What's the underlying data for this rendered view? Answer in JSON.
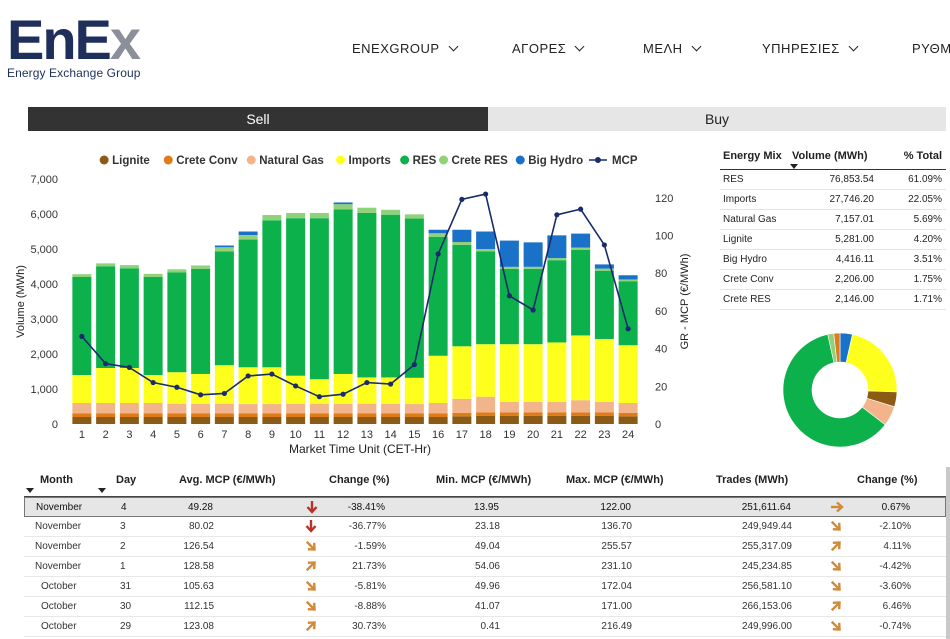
{
  "header": {
    "logo_main": "EnE",
    "logo_x": "x",
    "logo_sub": "Energy Exchange Group",
    "nav": [
      "ENEXGROUP",
      "ΑΓΟΡΕΣ",
      "ΜΕΛΗ",
      "ΥΠΗΡΕΣΙΕΣ",
      "ΡΥΘΜ"
    ]
  },
  "tabs": {
    "sell": "Sell",
    "buy": "Buy"
  },
  "chart_data": {
    "type": "bar",
    "subtype": "stacked-bar-with-line",
    "categories": [
      "1",
      "2",
      "3",
      "4",
      "5",
      "6",
      "7",
      "8",
      "9",
      "10",
      "11",
      "12",
      "13",
      "14",
      "15",
      "16",
      "17",
      "18",
      "19",
      "20",
      "21",
      "22",
      "23",
      "24"
    ],
    "xlabel": "Market Time Unit (CET-Hr)",
    "ylabel": "Volume (MWh)",
    "y2label": "GR - MCP (€/MWh)",
    "ylim": [
      0,
      7000
    ],
    "y2lim": [
      0,
      130
    ],
    "yticks": [
      "0",
      "1,000",
      "2,000",
      "3,000",
      "4,000",
      "5,000",
      "6,000",
      "7,000"
    ],
    "y2ticks": [
      "0",
      "20",
      "40",
      "60",
      "80",
      "100",
      "120"
    ],
    "legend_position": "top",
    "series": [
      {
        "name": "Lignite",
        "color": "#8b5a14",
        "values": [
          200,
          200,
          200,
          200,
          200,
          200,
          200,
          200,
          200,
          200,
          200,
          200,
          200,
          200,
          200,
          200,
          220,
          230,
          230,
          230,
          230,
          230,
          230,
          220
        ]
      },
      {
        "name": "Crete Conv",
        "color": "#e07b1a",
        "values": [
          100,
          100,
          100,
          100,
          100,
          100,
          100,
          100,
          100,
          100,
          100,
          100,
          100,
          100,
          100,
          100,
          100,
          100,
          100,
          100,
          100,
          100,
          100,
          100
        ]
      },
      {
        "name": "Natural Gas",
        "color": "#f2b48a",
        "values": [
          300,
          300,
          300,
          300,
          280,
          280,
          280,
          270,
          270,
          280,
          280,
          280,
          280,
          280,
          270,
          300,
          400,
          450,
          300,
          300,
          300,
          350,
          300,
          280
        ]
      },
      {
        "name": "Imports",
        "color": "#ffff1e",
        "values": [
          800,
          1000,
          1000,
          800,
          900,
          850,
          1100,
          1050,
          1050,
          800,
          700,
          850,
          750,
          750,
          750,
          1350,
          1500,
          1500,
          1650,
          1650,
          1700,
          1850,
          1800,
          1650
        ]
      },
      {
        "name": "RES",
        "color": "#0db14b",
        "values": [
          2800,
          2900,
          2850,
          2800,
          2850,
          3000,
          3250,
          3650,
          4200,
          4500,
          4600,
          4700,
          4700,
          4650,
          4550,
          3400,
          2900,
          2650,
          2150,
          2150,
          2350,
          2450,
          1950,
          1830
        ]
      },
      {
        "name": "Crete RES",
        "color": "#8fd27a",
        "values": [
          80,
          90,
          90,
          90,
          90,
          100,
          120,
          130,
          150,
          150,
          150,
          150,
          150,
          140,
          120,
          100,
          80,
          70,
          60,
          60,
          60,
          60,
          60,
          50
        ]
      },
      {
        "name": "Big Hydro",
        "color": "#1a72c8",
        "values": [
          0,
          0,
          0,
          0,
          0,
          0,
          50,
          100,
          0,
          0,
          0,
          50,
          0,
          0,
          0,
          100,
          350,
          500,
          750,
          700,
          650,
          400,
          120,
          120
        ]
      }
    ],
    "line_series": {
      "name": "MCP",
      "color": "#1a2a6c",
      "axis": "right",
      "values": [
        46.5,
        32,
        30,
        22,
        19.5,
        15.5,
        16.2,
        25.5,
        26.5,
        20.2,
        14.5,
        15.8,
        22,
        21.2,
        31.5,
        90.2,
        119.2,
        122,
        68,
        60.5,
        111,
        114,
        95,
        50.5
      ]
    }
  },
  "energy_mix": {
    "headers": [
      "Energy Mix",
      "Volume (MWh)",
      "% Total"
    ],
    "rows": [
      {
        "name": "RES",
        "volume": "76,853.54",
        "pct": "61.09%"
      },
      {
        "name": "Imports",
        "volume": "27,746.20",
        "pct": "22.05%"
      },
      {
        "name": "Natural Gas",
        "volume": "7,157.01",
        "pct": "5.69%"
      },
      {
        "name": "Lignite",
        "volume": "5,281.00",
        "pct": "4.20%"
      },
      {
        "name": "Big Hydro",
        "volume": "4,416.11",
        "pct": "3.51%"
      },
      {
        "name": "Crete Conv",
        "volume": "2,206.00",
        "pct": "1.75%"
      },
      {
        "name": "Crete RES",
        "volume": "2,146.00",
        "pct": "1.71%"
      }
    ],
    "donut": [
      {
        "name": "RES",
        "value": 61.09,
        "color": "#0db14b"
      },
      {
        "name": "Imports",
        "value": 22.05,
        "color": "#ffff1e"
      },
      {
        "name": "Lignite",
        "value": 4.2,
        "color": "#8b5a14"
      },
      {
        "name": "Natural Gas",
        "value": 5.69,
        "color": "#f2b48a"
      },
      {
        "name": "Crete RES",
        "value": 1.71,
        "color": "#8fd27a"
      },
      {
        "name": "Crete Conv",
        "value": 1.75,
        "color": "#e07b1a"
      },
      {
        "name": "Big Hydro",
        "value": 3.51,
        "color": "#1a72c8"
      }
    ]
  },
  "history": {
    "headers": {
      "month": "Month",
      "day": "Day",
      "avg": "Avg. MCP (€/MWh)",
      "change": "Change (%)",
      "min": "Min. MCP (€/MWh)",
      "max": "Max. MCP (€/MWh)",
      "trades": "Trades (MWh)",
      "change2": "Change (%)"
    },
    "rows": [
      {
        "month": "November",
        "day": "4",
        "avg": "49.28",
        "arrow1": "down",
        "change": "-38.41%",
        "min": "13.95",
        "max": "122.00",
        "trades": "251,611.64",
        "arrow2": "right",
        "change2": "0.67%"
      },
      {
        "month": "November",
        "day": "3",
        "avg": "80.02",
        "arrow1": "down",
        "change": "-36.77%",
        "min": "23.18",
        "max": "136.70",
        "trades": "249,949.44",
        "arrow2": "down-right",
        "change2": "-2.10%"
      },
      {
        "month": "November",
        "day": "2",
        "avg": "126.54",
        "arrow1": "down-right",
        "change": "-1.59%",
        "min": "49.04",
        "max": "255.57",
        "trades": "255,317.09",
        "arrow2": "up-right",
        "change2": "4.11%"
      },
      {
        "month": "November",
        "day": "1",
        "avg": "128.58",
        "arrow1": "up-right",
        "change": "21.73%",
        "min": "54.06",
        "max": "231.10",
        "trades": "245,234.85",
        "arrow2": "down-right",
        "change2": "-4.42%"
      },
      {
        "month": "October",
        "day": "31",
        "avg": "105.63",
        "arrow1": "down-right",
        "change": "-5.81%",
        "min": "49.96",
        "max": "172.04",
        "trades": "256,581.10",
        "arrow2": "down-right",
        "change2": "-3.60%"
      },
      {
        "month": "October",
        "day": "30",
        "avg": "112.15",
        "arrow1": "down-right",
        "change": "-8.88%",
        "min": "41.07",
        "max": "171.00",
        "trades": "266,153.06",
        "arrow2": "up-right",
        "change2": "6.46%"
      },
      {
        "month": "October",
        "day": "29",
        "avg": "123.08",
        "arrow1": "up-right",
        "change": "30.73%",
        "min": "0.41",
        "max": "216.49",
        "trades": "249,996.00",
        "arrow2": "down-right",
        "change2": "-0.74%"
      }
    ]
  }
}
